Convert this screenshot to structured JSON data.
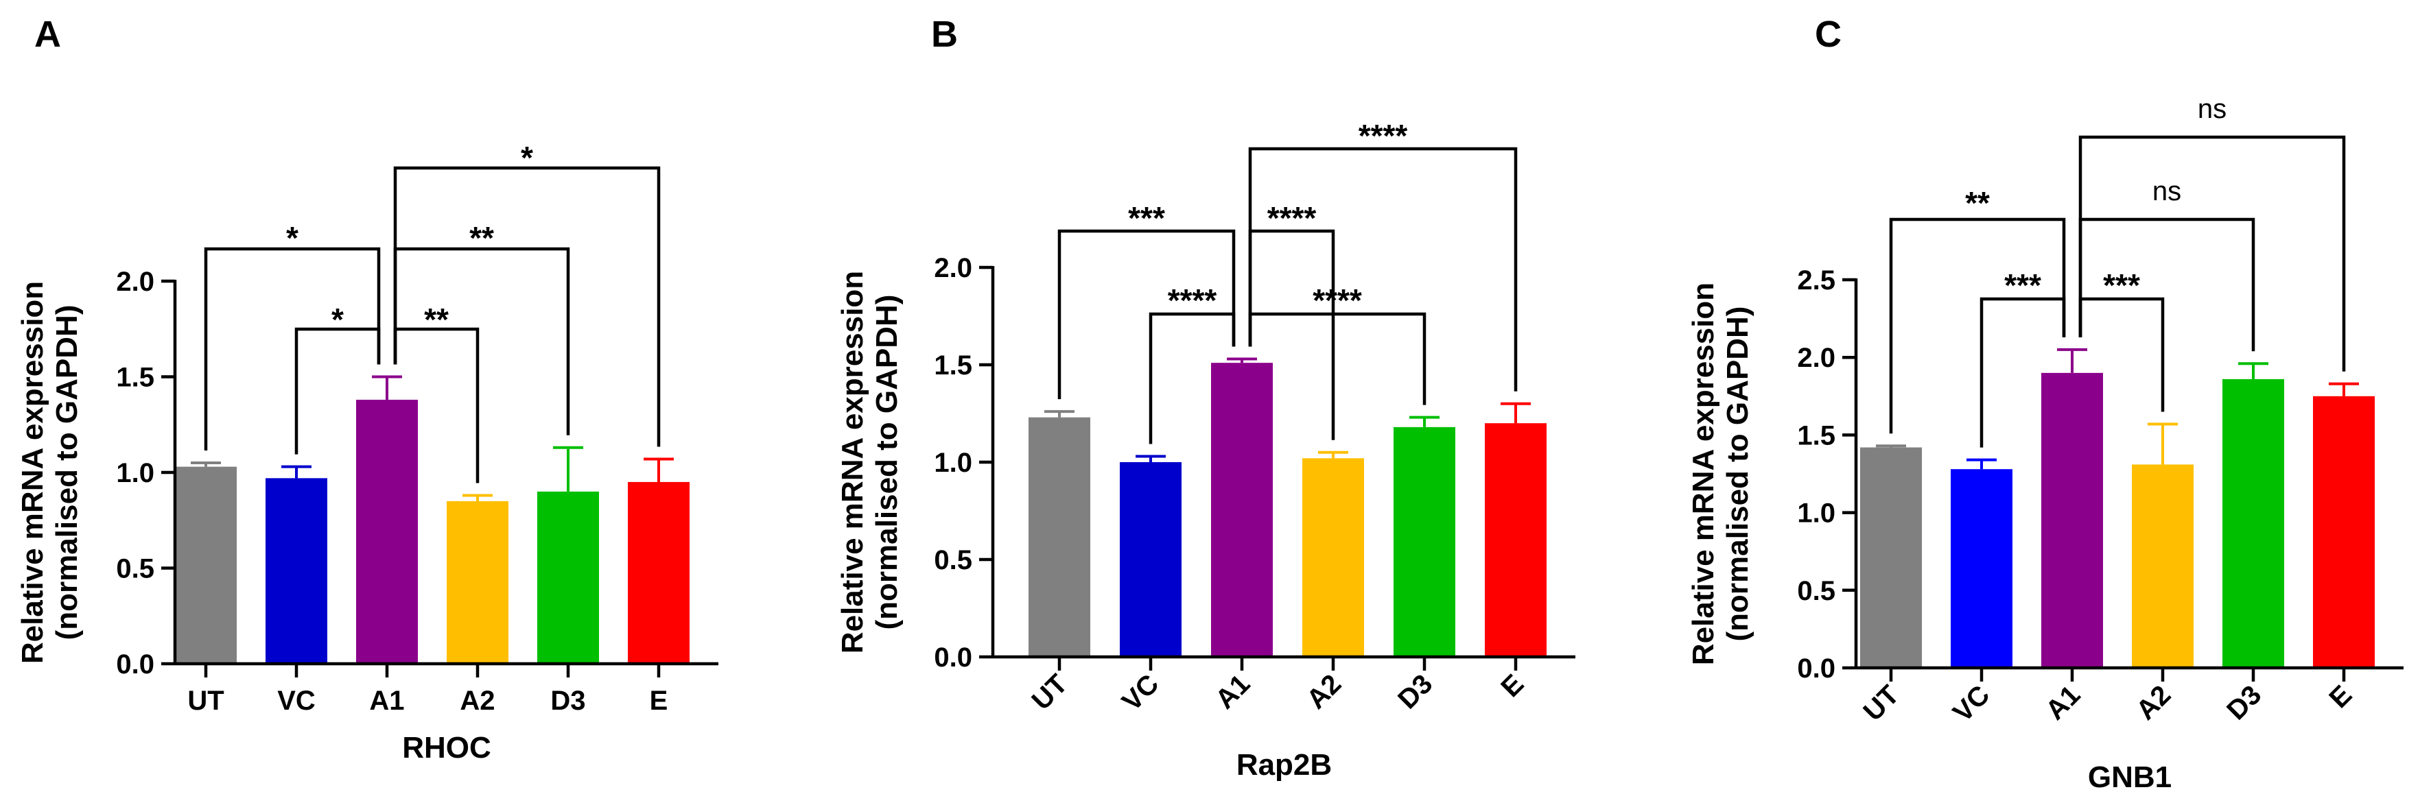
{
  "chart_data": [
    {
      "panel": "A",
      "type": "bar",
      "title": "",
      "xlabel": "RHOC",
      "ylabel": "Relative mRNA expression",
      "ylabel2": "(normalised to GAPDH)",
      "ylim": [
        0,
        2.0
      ],
      "yticks": [
        "0.0",
        "0.5",
        "1.0",
        "1.5",
        "2.0"
      ],
      "categories": [
        "UT",
        "VC",
        "A1",
        "A2",
        "D3",
        "E"
      ],
      "values": [
        1.03,
        0.97,
        1.38,
        0.85,
        0.9,
        0.95
      ],
      "errors": [
        0.02,
        0.06,
        0.12,
        0.03,
        0.23,
        0.12
      ],
      "colors": [
        "#808080",
        "#0000cc",
        "#8b008b",
        "#ffbf00",
        "#00bf00",
        "#ff0000"
      ],
      "comparisons": [
        {
          "from": "A1",
          "to": "VC",
          "label": "*"
        },
        {
          "from": "A1",
          "to": "A2",
          "label": "**"
        },
        {
          "from": "A1",
          "to": "UT",
          "label": "*"
        },
        {
          "from": "A1",
          "to": "D3",
          "label": "**"
        },
        {
          "from": "A1",
          "to": "E",
          "label": "*"
        }
      ]
    },
    {
      "panel": "B",
      "type": "bar",
      "title": "",
      "xlabel": "Rap2B",
      "ylabel": "Relative mRNA expression",
      "ylabel2": "(normalised to GAPDH)",
      "ylim": [
        0,
        2.0
      ],
      "yticks": [
        "0.0",
        "0.5",
        "1.0",
        "1.5",
        "2.0"
      ],
      "categories": [
        "UT",
        "VC",
        "A1",
        "A2",
        "D3",
        "E"
      ],
      "values": [
        1.23,
        1.0,
        1.51,
        1.02,
        1.18,
        1.2
      ],
      "errors": [
        0.03,
        0.03,
        0.02,
        0.03,
        0.05,
        0.1
      ],
      "colors": [
        "#808080",
        "#0000cc",
        "#8b008b",
        "#ffbf00",
        "#00bf00",
        "#ff0000"
      ],
      "comparisons": [
        {
          "from": "A1",
          "to": "VC",
          "label": "****"
        },
        {
          "from": "A1",
          "to": "D3",
          "label": "****"
        },
        {
          "from": "A1",
          "to": "UT",
          "label": "***"
        },
        {
          "from": "A1",
          "to": "A2",
          "label": "****"
        },
        {
          "from": "A1",
          "to": "E",
          "label": "****"
        }
      ]
    },
    {
      "panel": "C",
      "type": "bar",
      "title": "",
      "xlabel": "GNB1",
      "ylabel": "Relative mRNA expression",
      "ylabel2": "(normalised to GAPDH)",
      "ylim": [
        0,
        2.5
      ],
      "yticks": [
        "0.0",
        "0.5",
        "1.0",
        "1.5",
        "2.0",
        "2.5"
      ],
      "categories": [
        "UT",
        "VC",
        "A1",
        "A2",
        "D3",
        "E"
      ],
      "values": [
        1.42,
        1.28,
        1.9,
        1.31,
        1.86,
        1.75
      ],
      "errors": [
        0.01,
        0.06,
        0.15,
        0.26,
        0.1,
        0.08
      ],
      "colors": [
        "#808080",
        "#0000ff",
        "#8b008b",
        "#ffbf00",
        "#00bf00",
        "#ff0000"
      ],
      "comparisons": [
        {
          "from": "A1",
          "to": "VC",
          "label": "***"
        },
        {
          "from": "A1",
          "to": "A2",
          "label": "***"
        },
        {
          "from": "A1",
          "to": "UT",
          "label": "**"
        },
        {
          "from": "A1",
          "to": "D3",
          "label": "ns"
        },
        {
          "from": "A1",
          "to": "E",
          "label": "ns"
        }
      ]
    }
  ]
}
